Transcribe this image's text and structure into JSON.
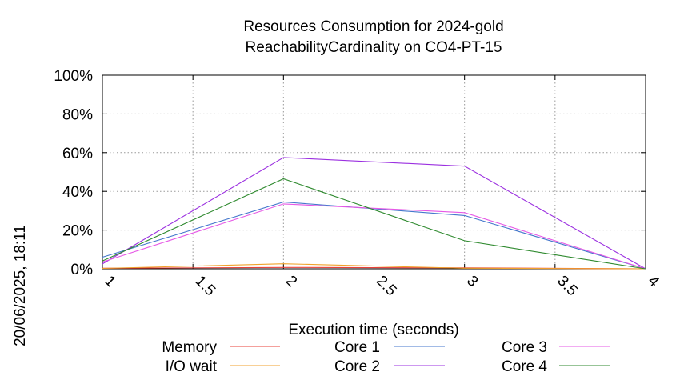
{
  "chart_data": {
    "type": "line",
    "title": "Resources Consumption for 2024-gold",
    "subtitle": "ReachabilityCardinality on CO4-PT-15",
    "xlabel": "Execution time (seconds)",
    "side_label": "20/06/2025, 18:11",
    "xlim": [
      1,
      4
    ],
    "ylim": [
      0,
      100
    ],
    "x_ticks": [
      "1",
      "1.5",
      "2",
      "2.5",
      "3",
      "3.5",
      "4"
    ],
    "y_ticks": [
      "0%",
      "20%",
      "40%",
      "60%",
      "80%",
      "100%"
    ],
    "grid": true,
    "legend_position": "bottom",
    "series": [
      {
        "name": "Memory",
        "color": "#e8413a",
        "x": [
          1,
          2,
          3,
          4
        ],
        "y": [
          0.3,
          0.7,
          0.5,
          0
        ]
      },
      {
        "name": "I/O wait",
        "color": "#f0a22c",
        "x": [
          1,
          2,
          3,
          4
        ],
        "y": [
          0.2,
          2.6,
          0.3,
          0
        ]
      },
      {
        "name": "Core 1",
        "color": "#4477cc",
        "x": [
          1,
          2,
          3,
          4
        ],
        "y": [
          6,
          34.5,
          27.5,
          0
        ]
      },
      {
        "name": "Core 2",
        "color": "#9b30e0",
        "x": [
          1,
          2,
          3,
          4
        ],
        "y": [
          2.5,
          57.5,
          53,
          0
        ]
      },
      {
        "name": "Core 3",
        "color": "#e658e6",
        "x": [
          1,
          2,
          3,
          4
        ],
        "y": [
          3.5,
          33.5,
          29,
          0
        ]
      },
      {
        "name": "Core 4",
        "color": "#2f8a2f",
        "x": [
          1,
          2,
          3,
          4
        ],
        "y": [
          4,
          46.5,
          14.5,
          0
        ]
      }
    ]
  }
}
